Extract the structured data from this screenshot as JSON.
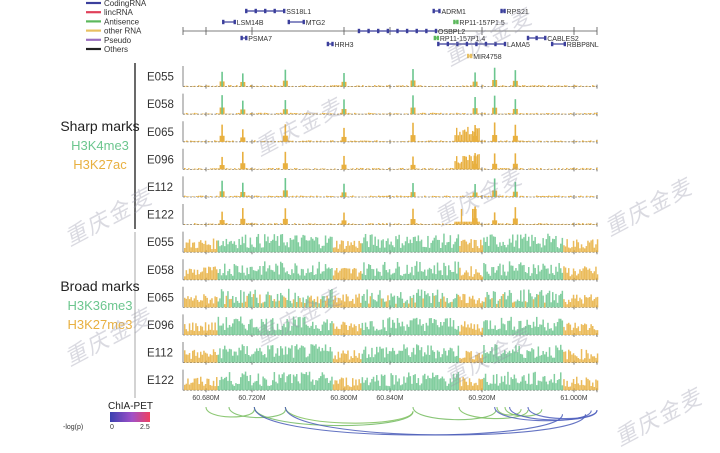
{
  "legend": {
    "items": [
      {
        "label": "CodingRNA",
        "color": "#3b3f9c"
      },
      {
        "label": "lincRNA",
        "color": "#e0405a"
      },
      {
        "label": "Antisence",
        "color": "#5cb85c"
      },
      {
        "label": "other RNA",
        "color": "#e8c060"
      },
      {
        "label": "Pseudo",
        "color": "#9a6fc0"
      },
      {
        "label": "Others",
        "color": "#222222"
      }
    ]
  },
  "genes": [
    {
      "name": "SS18L1",
      "type": "CodingRNA",
      "start": 60.715,
      "end": 60.748,
      "row": 0
    },
    {
      "name": "LSM14B",
      "type": "CodingRNA",
      "start": 60.695,
      "end": 60.705,
      "row": 1
    },
    {
      "name": "MTG2",
      "type": "CodingRNA",
      "start": 60.752,
      "end": 60.765,
      "row": 1
    },
    {
      "name": "PSMA7",
      "type": "CodingRNA",
      "start": 60.711,
      "end": 60.715,
      "row": 3
    },
    {
      "name": "HRH3",
      "type": "CodingRNA",
      "start": 60.786,
      "end": 60.79,
      "row": 4
    },
    {
      "name": "ADRM1",
      "type": "CodingRNA",
      "start": 60.878,
      "end": 60.883,
      "row": 0
    },
    {
      "name": "OSBPL2",
      "type": "CodingRNA",
      "start": 60.813,
      "end": 60.88,
      "row": 2
    },
    {
      "name": "RP11-157P1.5",
      "type": "Antisence",
      "start": 60.896,
      "end": 60.898,
      "row": 1
    },
    {
      "name": "RPS21",
      "type": "CodingRNA",
      "start": 60.937,
      "end": 60.939,
      "row": 0
    },
    {
      "name": "RP11-157P1.4",
      "type": "Antisence",
      "start": 60.879,
      "end": 60.881,
      "row": 3
    },
    {
      "name": "LAMA5",
      "type": "CodingRNA",
      "start": 60.882,
      "end": 60.94,
      "row": 4
    },
    {
      "name": "MIR4758",
      "type": "other RNA",
      "start": 60.908,
      "end": 60.909,
      "row": 5
    },
    {
      "name": "CABLES2",
      "type": "CodingRNA",
      "start": 60.96,
      "end": 60.975,
      "row": 3
    },
    {
      "name": "RBBP8NL",
      "type": "CodingRNA",
      "start": 60.981,
      "end": 60.992,
      "row": 4
    }
  ],
  "groups": [
    {
      "title": "Sharp marks",
      "marks": [
        {
          "label": "H3K4me3",
          "color": "#6cc68e"
        },
        {
          "label": "H3K27ac",
          "color": "#e8b040"
        }
      ],
      "samples": [
        "E055",
        "E058",
        "E065",
        "E096",
        "E112",
        "E122"
      ]
    },
    {
      "title": "Broad marks",
      "marks": [
        {
          "label": "H3K36me3",
          "color": "#6cc68e"
        },
        {
          "label": "H3K27me3",
          "color": "#e8b040"
        }
      ],
      "samples": [
        "E055",
        "E058",
        "E065",
        "E096",
        "E112",
        "E122"
      ]
    }
  ],
  "axis": {
    "range_mb": [
      60.66,
      61.02
    ],
    "ticks": [
      {
        "value": 60.68,
        "label": "60.680M"
      },
      {
        "value": 60.72,
        "label": "60.720M"
      },
      {
        "value": 60.8,
        "label": "60.800M"
      },
      {
        "value": 60.84,
        "label": "60.840M"
      },
      {
        "value": 60.92,
        "label": "60.920M"
      },
      {
        "value": 61.0,
        "label": "61.000M"
      }
    ]
  },
  "sharp_peaks": {
    "positions_mb": [
      60.694,
      60.712,
      60.749,
      60.8,
      60.86,
      60.914,
      60.931,
      60.949
    ],
    "heavy_regions": [
      [
        60.896,
        60.918
      ]
    ]
  },
  "chiapet": {
    "title": "ChIA-PET",
    "scale_label": "-log(p)",
    "scale_min": "0",
    "scale_max": "2.5",
    "color_low": "#3a40b0",
    "color_high": "#f04060",
    "loops": [
      {
        "a": 60.68,
        "b": 60.722,
        "score": 0.4
      },
      {
        "a": 60.7,
        "b": 60.749,
        "score": 0.5
      },
      {
        "a": 60.722,
        "b": 60.86,
        "score": 0.6
      },
      {
        "a": 60.749,
        "b": 60.86,
        "score": 0.3
      },
      {
        "a": 60.86,
        "b": 60.932,
        "score": 0.5
      },
      {
        "a": 60.9,
        "b": 60.96,
        "score": 0.4
      },
      {
        "a": 60.933,
        "b": 60.954,
        "score": 0.3
      },
      {
        "a": 60.94,
        "b": 60.972,
        "score": 0.4
      },
      {
        "a": 60.749,
        "b": 61.01,
        "score": 1.8
      },
      {
        "a": 60.722,
        "b": 60.99,
        "score": 1.6
      },
      {
        "a": 60.931,
        "b": 61.015,
        "score": 2.0
      },
      {
        "a": 60.944,
        "b": 61.02,
        "score": 2.1
      },
      {
        "a": 60.96,
        "b": 61.02,
        "score": 2.2
      }
    ]
  },
  "watermark_text": "重庆金麦"
}
